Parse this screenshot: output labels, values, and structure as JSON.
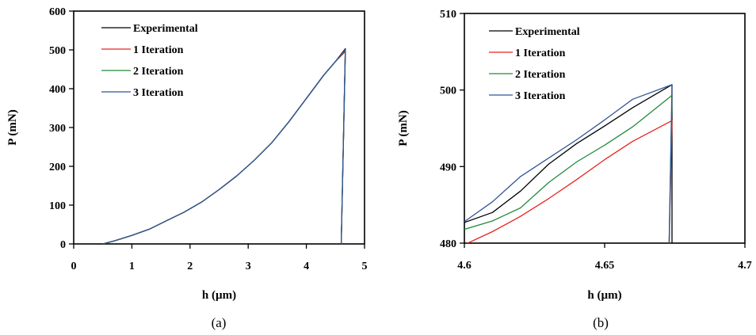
{
  "chart_data": [
    {
      "type": "line",
      "caption": "(a)",
      "xlabel": "h (µm)",
      "ylabel": "P (mN)",
      "xlim": [
        0,
        5
      ],
      "ylim": [
        0,
        600
      ],
      "xticks": [
        0,
        1,
        2,
        3,
        4,
        5
      ],
      "yticks": [
        0,
        100,
        200,
        300,
        400,
        500,
        600
      ],
      "xtick_labels": [
        "0",
        "1",
        "2",
        "3",
        "4",
        "5"
      ],
      "ytick_labels": [
        "0",
        "100",
        "200",
        "300",
        "400",
        "500",
        "600"
      ],
      "grid": false,
      "legend_position": "top-left",
      "series": [
        {
          "name": "Experimental",
          "color": "#000000",
          "x": [
            0.5,
            0.7,
            1.0,
            1.3,
            1.6,
            1.9,
            2.2,
            2.5,
            2.8,
            3.1,
            3.4,
            3.7,
            4.0,
            4.3,
            4.5,
            4.67,
            4.6
          ],
          "y": [
            0,
            8,
            22,
            38,
            60,
            82,
            108,
            140,
            175,
            215,
            260,
            315,
            375,
            435,
            470,
            503,
            0
          ]
        },
        {
          "name": "1 Iteration",
          "color": "#e8231f",
          "x": [
            0.5,
            0.7,
            1.0,
            1.3,
            1.6,
            1.9,
            2.2,
            2.5,
            2.8,
            3.1,
            3.4,
            3.7,
            4.0,
            4.3,
            4.5,
            4.67,
            4.6
          ],
          "y": [
            0,
            8,
            22,
            38,
            60,
            82,
            108,
            140,
            175,
            215,
            260,
            315,
            375,
            435,
            470,
            496,
            0
          ]
        },
        {
          "name": "2 Iteration",
          "color": "#228b3b",
          "x": [
            0.5,
            0.7,
            1.0,
            1.3,
            1.6,
            1.9,
            2.2,
            2.5,
            2.8,
            3.1,
            3.4,
            3.7,
            4.0,
            4.3,
            4.5,
            4.67,
            4.6
          ],
          "y": [
            0,
            8,
            22,
            38,
            60,
            82,
            108,
            140,
            175,
            215,
            260,
            315,
            375,
            435,
            470,
            499,
            0
          ]
        },
        {
          "name": "3 Iteration",
          "color": "#2f5597",
          "x": [
            0.5,
            0.7,
            1.0,
            1.3,
            1.6,
            1.9,
            2.2,
            2.5,
            2.8,
            3.1,
            3.4,
            3.7,
            4.0,
            4.3,
            4.5,
            4.67,
            4.6
          ],
          "y": [
            0,
            8,
            22,
            38,
            60,
            82,
            108,
            140,
            175,
            215,
            260,
            315,
            375,
            435,
            470,
            501,
            0
          ]
        }
      ]
    },
    {
      "type": "line",
      "caption": "(b)",
      "xlabel": "h (µm)",
      "ylabel": "P (mN)",
      "xlim": [
        4.6,
        4.7
      ],
      "ylim": [
        480,
        510
      ],
      "xticks": [
        4.6,
        4.65,
        4.7
      ],
      "yticks": [
        480,
        490,
        500,
        510
      ],
      "xtick_labels": [
        "4.6",
        "4.65",
        "4.7"
      ],
      "ytick_labels": [
        "480",
        "490",
        "500",
        "510"
      ],
      "grid": false,
      "legend_position": "top-left",
      "series": [
        {
          "name": "Experimental",
          "color": "#000000",
          "x": [
            4.6,
            4.61,
            4.62,
            4.63,
            4.64,
            4.65,
            4.66,
            4.674,
            4.674
          ],
          "y": [
            482.7,
            484.0,
            486.8,
            490.3,
            493.0,
            495.3,
            497.7,
            500.7,
            480.0
          ]
        },
        {
          "name": "1 Iteration",
          "color": "#e8231f",
          "x": [
            4.6,
            4.61,
            4.62,
            4.63,
            4.64,
            4.65,
            4.66,
            4.674,
            4.673
          ],
          "y": [
            479.8,
            481.5,
            483.5,
            485.8,
            488.3,
            490.9,
            493.3,
            496.0,
            480.0
          ]
        },
        {
          "name": "2 Iteration",
          "color": "#228b3b",
          "x": [
            4.6,
            4.61,
            4.62,
            4.63,
            4.64,
            4.65,
            4.66,
            4.674,
            4.673
          ],
          "y": [
            481.8,
            482.9,
            484.6,
            487.9,
            490.6,
            492.8,
            495.2,
            499.3,
            480.0
          ]
        },
        {
          "name": "3 Iteration",
          "color": "#2f5597",
          "x": [
            4.6,
            4.61,
            4.62,
            4.63,
            4.64,
            4.65,
            4.66,
            4.674,
            4.673
          ],
          "y": [
            482.8,
            485.4,
            488.7,
            491.1,
            493.5,
            496.1,
            498.8,
            500.7,
            480.0
          ]
        }
      ]
    }
  ]
}
